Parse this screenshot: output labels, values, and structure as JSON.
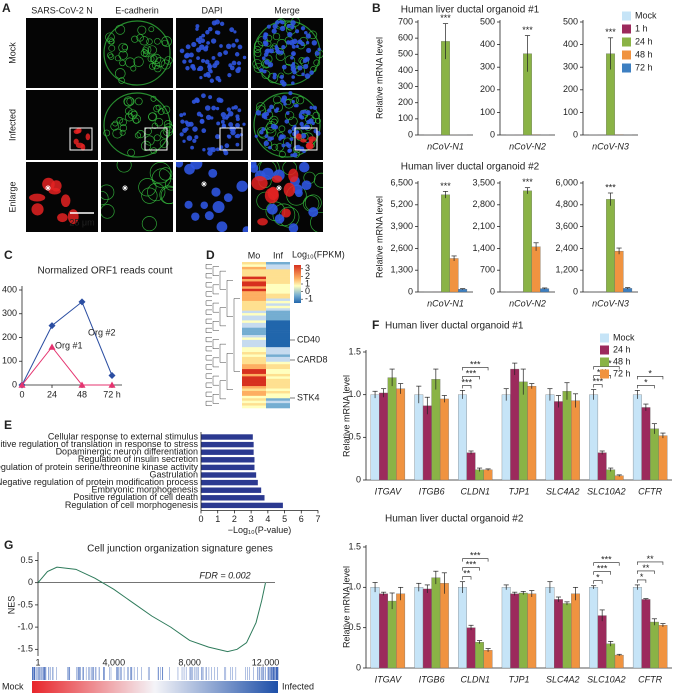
{
  "panel_labels": [
    "A",
    "B",
    "C",
    "D",
    "E",
    "F",
    "G"
  ],
  "microscopy": {
    "columns": [
      "SARS-CoV-2 N",
      "E-cadherin",
      "DAPI",
      "Merge"
    ],
    "rows": [
      "Mock",
      "Infected",
      "Enlarge"
    ],
    "scale_bar": "25 μm"
  },
  "chart_data": [
    {
      "type": "bar",
      "title": "Human liver ductal organoid #1",
      "y_label": "Relative mRNA level",
      "categories": [
        "nCoV-N1",
        "nCoV-N2",
        "nCoV-N3"
      ],
      "facets": [
        {
          "ylim": [
            0,
            700
          ],
          "yticks": [
            0,
            100,
            200,
            300,
            400,
            500,
            600,
            700
          ]
        },
        {
          "ylim": [
            0,
            500
          ],
          "yticks": [
            0,
            100,
            200,
            300,
            400,
            500
          ]
        },
        {
          "ylim": [
            0,
            500
          ],
          "yticks": [
            0,
            100,
            200,
            300,
            400,
            500
          ]
        }
      ],
      "series": [
        {
          "name": "Mock",
          "color": "#c6e4f7",
          "values": [
            1,
            1,
            1
          ]
        },
        {
          "name": "1 h",
          "color": "#9c2a5c",
          "values": [
            1,
            1,
            1
          ]
        },
        {
          "name": "24 h",
          "color": "#8ab346",
          "values": [
            580,
            360,
            360
          ],
          "errors": [
            110,
            80,
            70
          ],
          "annotations": [
            "***",
            "***",
            "***"
          ]
        },
        {
          "name": "48 h",
          "color": "#f09340",
          "values": [
            2,
            2,
            2
          ]
        },
        {
          "name": "72 h",
          "color": "#3d7fc1",
          "values": [
            1,
            1,
            1
          ]
        }
      ],
      "legend": "upper right"
    },
    {
      "type": "bar",
      "title": "Human liver ductal organoid #2",
      "y_label": "Relative mRNA level",
      "categories": [
        "nCoV-N1",
        "nCoV-N2",
        "nCoV-N3"
      ],
      "facets": [
        {
          "ylim": [
            0,
            6500
          ],
          "yticks": [
            0,
            {
              "value": 1300,
              "label": "1,300"
            },
            {
              "value": 2600,
              "label": "2,600"
            },
            {
              "value": 3900,
              "label": "3,900"
            },
            {
              "value": 5200,
              "label": "5,200"
            },
            {
              "value": 6500,
              "label": "6,500"
            }
          ]
        },
        {
          "ylim": [
            0,
            3500
          ],
          "yticks": [
            0,
            700,
            {
              "value": 1400,
              "label": "1,400"
            },
            {
              "value": 2100,
              "label": "2,100"
            },
            {
              "value": 2800,
              "label": "2,800"
            },
            {
              "value": 3500,
              "label": "3,500"
            }
          ]
        },
        {
          "ylim": [
            0,
            6000
          ],
          "yticks": [
            0,
            {
              "value": 1200,
              "label": "1,200"
            },
            {
              "value": 2400,
              "label": "2,400"
            },
            {
              "value": 3600,
              "label": "3,600"
            },
            {
              "value": 4800,
              "label": "4,800"
            },
            {
              "value": 6000,
              "label": "6,000"
            }
          ]
        }
      ],
      "series": [
        {
          "color": "#c6e4f7",
          "values": [
            1,
            1,
            1
          ]
        },
        {
          "color": "#9c2a5c",
          "values": [
            2,
            2,
            2
          ]
        },
        {
          "color": "#8ab346",
          "values": [
            5800,
            3250,
            5100
          ],
          "errors": [
            200,
            100,
            350
          ],
          "annotations": [
            "***",
            "***",
            "***"
          ]
        },
        {
          "color": "#f09340",
          "values": [
            2000,
            1450,
            2250
          ],
          "errors": [
            150,
            130,
            170
          ]
        },
        {
          "color": "#3d7fc1",
          "values": [
            170,
            110,
            200
          ],
          "errors": [
            30,
            20,
            40
          ]
        }
      ]
    },
    {
      "type": "line",
      "title": "Normalized ORF1 reads count",
      "x": [
        0,
        24,
        48,
        72
      ],
      "xlim": [
        0,
        72
      ],
      "xticks": [
        0,
        24,
        48,
        {
          "value": 72,
          "label": "72 h"
        }
      ],
      "ylim": [
        0,
        400
      ],
      "yticks": [
        0,
        100,
        200,
        300,
        400
      ],
      "series": [
        {
          "name": "Org #2",
          "color": "#2b4ea2",
          "marker": "diamond",
          "values": [
            0,
            250,
            350,
            40
          ]
        },
        {
          "name": "Org #1",
          "color": "#e5336f",
          "marker": "triangle",
          "values": [
            0,
            160,
            0,
            0
          ]
        }
      ]
    },
    {
      "type": "heatmap",
      "columns": [
        "Mo",
        "Inf"
      ],
      "colorbar_title": "Log₁₀(FPKM)",
      "clim": [
        -1.5,
        3.5
      ],
      "colorbar_ticks": [
        3,
        2,
        1,
        0,
        -1
      ],
      "row_labels": [
        "CD40",
        "CARD8",
        "STK4"
      ]
    },
    {
      "type": "barh",
      "x_label": "−Log₁₀(P-value)",
      "categories": [
        "Cellular response to external stimulus",
        "Positive regulation of translation in response to stress",
        "Dopaminergic neuron differentiation",
        "Regulation of insulin secretion",
        "Regulation of protein serine/threonine kinase activity",
        "Gastrulation",
        "Negative regulation of protein modification process",
        "Embryonic morphogenesis",
        "Positive regulation of cell death",
        "Regulation of cell morphogenesis"
      ],
      "values": [
        3.1,
        3.15,
        3.15,
        3.2,
        3.2,
        3.3,
        3.4,
        3.6,
        3.8,
        4.9
      ],
      "color": "#2b3990",
      "label_colors": [
        "#e03a2b",
        "#222222",
        "#222222",
        "#222222",
        "#222222",
        "#222222",
        "#222222",
        "#222222",
        "#e03a2b",
        "#222222"
      ],
      "xlim": [
        0,
        7
      ],
      "xticks": [
        0,
        1,
        2,
        3,
        4,
        5,
        6,
        7
      ]
    },
    {
      "type": "bar",
      "title": "Human liver ductal organoid #1",
      "y_label": "Relative mRNA level",
      "categories": [
        "ITGAV",
        "ITGB6",
        "CLDN1",
        "TJP1",
        "SLC4A2",
        "SLC10A2",
        "CFTR"
      ],
      "ylim": [
        0,
        1.5
      ],
      "yticks": [
        0,
        0.5,
        {
          "value": 1,
          "label": "1.0"
        },
        1.5
      ],
      "series": [
        {
          "name": "Mock",
          "color": "#c6e4f7",
          "values": [
            1.0,
            1.0,
            1.0,
            1.0,
            1.0,
            1.0,
            1.0
          ],
          "errors": [
            0.04,
            0.1,
            0.05,
            0.07,
            0.07,
            0.06,
            0.05
          ]
        },
        {
          "name": "24 h",
          "color": "#9c2a5c",
          "values": [
            1.02,
            0.87,
            0.32,
            1.3,
            0.92,
            0.32,
            0.85
          ],
          "errors": [
            0.05,
            0.1,
            0.02,
            0.07,
            0.07,
            0.02,
            0.04
          ],
          "annotations": [
            null,
            null,
            "***",
            null,
            null,
            "***",
            null
          ]
        },
        {
          "name": "48 h",
          "color": "#8ab346",
          "values": [
            1.2,
            1.18,
            0.12,
            1.15,
            1.04,
            0.12,
            0.6
          ],
          "errors": [
            0.1,
            0.12,
            0.02,
            0.15,
            0.1,
            0.02,
            0.06
          ],
          "annotations": [
            null,
            null,
            "***",
            null,
            null,
            "***",
            "*"
          ]
        },
        {
          "name": "72 h",
          "color": "#f09340",
          "values": [
            1.07,
            0.95,
            0.12,
            1.1,
            0.93,
            0.05,
            0.52
          ],
          "errors": [
            0.06,
            0.04,
            0.01,
            0.03,
            0.08,
            0.01,
            0.03
          ],
          "annotations": [
            null,
            null,
            "***",
            null,
            null,
            "***",
            "*"
          ]
        }
      ],
      "significance_brackets": true,
      "legend": "upper right"
    },
    {
      "type": "bar",
      "title": "Human liver ductal organoid #2",
      "y_label": "Relative mRNA level",
      "categories": [
        "ITGAV",
        "ITGB6",
        "CLDN1",
        "TJP1",
        "SLC4A2",
        "SLC10A2",
        "CFTR"
      ],
      "ylim": [
        0,
        1.5
      ],
      "yticks": [
        0,
        0.5,
        {
          "value": 1,
          "label": "1.0"
        },
        1.5
      ],
      "series": [
        {
          "color": "#c6e4f7",
          "values": [
            1.0,
            1.0,
            1.0,
            1.0,
            1.0,
            1.0,
            1.0
          ],
          "errors": [
            0.06,
            0.05,
            0.07,
            0.03,
            0.07,
            0.02,
            0.03
          ]
        },
        {
          "color": "#9c2a5c",
          "values": [
            0.92,
            0.98,
            0.5,
            0.92,
            0.85,
            0.65,
            0.85
          ],
          "errors": [
            0.02,
            0.05,
            0.03,
            0.02,
            0.03,
            0.07,
            0.01
          ],
          "annotations": [
            null,
            null,
            "**",
            null,
            null,
            "*",
            "*"
          ]
        },
        {
          "color": "#8ab346",
          "values": [
            0.83,
            1.12,
            0.32,
            0.93,
            0.8,
            0.3,
            0.57
          ],
          "errors": [
            0.1,
            0.08,
            0.02,
            0.02,
            0.02,
            0.03,
            0.04
          ],
          "annotations": [
            null,
            null,
            "***",
            null,
            null,
            "***",
            "**"
          ]
        },
        {
          "color": "#f09340",
          "values": [
            0.92,
            1.05,
            0.22,
            0.92,
            0.92,
            0.16,
            0.53
          ],
          "errors": [
            0.08,
            0.13,
            0.02,
            0.04,
            0.08,
            0.01,
            0.02
          ],
          "annotations": [
            null,
            null,
            "***",
            null,
            null,
            "***",
            "**"
          ]
        }
      ],
      "significance_brackets": true
    },
    {
      "type": "line",
      "title": "Cell junction organization signature genes",
      "y_label": "NES",
      "annotation": "FDR = 0.002",
      "x": [
        1,
        500,
        1000,
        2000,
        3000,
        4000,
        5000,
        6000,
        7000,
        8000,
        9000,
        10000,
        10500,
        11000,
        11500,
        11800,
        12000
      ],
      "xlim": [
        1,
        12500
      ],
      "xticks": [
        1,
        {
          "value": 4000,
          "label": "4,000"
        },
        {
          "value": 8000,
          "label": "8,000"
        },
        {
          "value": 12000,
          "label": "12,000"
        }
      ],
      "ylim": [
        -1.65,
        0.6
      ],
      "yticks": [
        0.5,
        0,
        -0.5,
        {
          "value": -1,
          "label": "-1.0"
        },
        -1.5
      ],
      "zero_line": true,
      "series": [
        {
          "color": "#2d7a5a",
          "values": [
            0,
            0.25,
            0.35,
            0.3,
            0.1,
            -0.15,
            -0.45,
            -0.75,
            -1.0,
            -1.3,
            -1.45,
            -1.55,
            -1.5,
            -1.35,
            -0.9,
            -0.4,
            0
          ]
        }
      ],
      "gradient_labels": [
        "Mock",
        "Infected"
      ]
    }
  ]
}
